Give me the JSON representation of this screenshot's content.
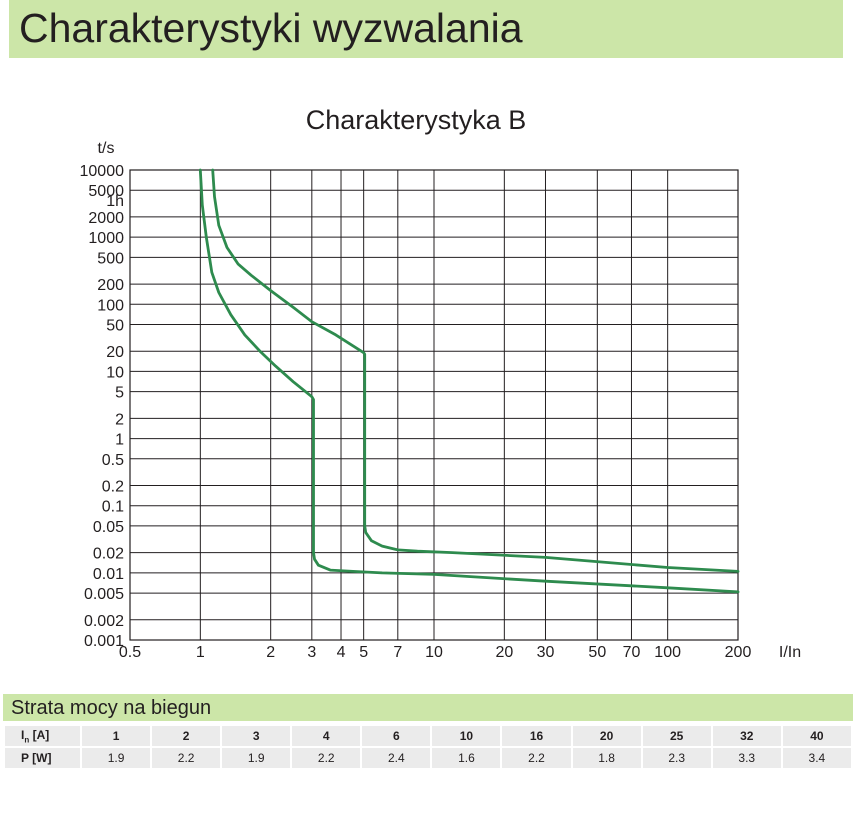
{
  "header": {
    "title": "Charakterystyki wyzwalania"
  },
  "chart_data": {
    "type": "line",
    "title": "Charakterystyka B",
    "ylabel": "t/s",
    "xlabel": "I/In",
    "x_scale": "log",
    "y_scale": "log",
    "xlim": [
      0.5,
      200
    ],
    "ylim": [
      0.001,
      10000
    ],
    "grid": true,
    "x_grid": [
      1,
      2,
      3,
      4,
      5,
      7,
      10,
      20,
      30,
      50,
      70,
      100,
      200
    ],
    "y_grid": [
      0.001,
      0.002,
      0.005,
      0.01,
      0.02,
      0.05,
      0.1,
      0.2,
      0.5,
      1,
      2,
      5,
      10,
      20,
      50,
      100,
      200,
      500,
      1000,
      2000,
      5000,
      10000
    ],
    "x_ticks": [
      {
        "value": 0.5,
        "label": "0.5"
      },
      {
        "value": 1,
        "label": "1"
      },
      {
        "value": 2,
        "label": "2"
      },
      {
        "value": 3,
        "label": "3"
      },
      {
        "value": 4,
        "label": "4"
      },
      {
        "value": 5,
        "label": "5"
      },
      {
        "value": 7,
        "label": "7"
      },
      {
        "value": 10,
        "label": "10"
      },
      {
        "value": 20,
        "label": "20"
      },
      {
        "value": 30,
        "label": "30"
      },
      {
        "value": 50,
        "label": "50"
      },
      {
        "value": 70,
        "label": "70"
      },
      {
        "value": 100,
        "label": "100"
      },
      {
        "value": 200,
        "label": "200"
      }
    ],
    "y_ticks": [
      {
        "value": 10000,
        "label": "10000"
      },
      {
        "value": 5000,
        "label": "5000"
      },
      {
        "value": 3600,
        "label": "1h"
      },
      {
        "value": 2000,
        "label": "2000"
      },
      {
        "value": 1000,
        "label": "1000"
      },
      {
        "value": 500,
        "label": "500"
      },
      {
        "value": 200,
        "label": "200"
      },
      {
        "value": 100,
        "label": "100"
      },
      {
        "value": 50,
        "label": "50"
      },
      {
        "value": 20,
        "label": "20"
      },
      {
        "value": 10,
        "label": "10"
      },
      {
        "value": 5,
        "label": "5"
      },
      {
        "value": 2,
        "label": "2"
      },
      {
        "value": 1,
        "label": "1"
      },
      {
        "value": 0.5,
        "label": "0.5"
      },
      {
        "value": 0.2,
        "label": "0.2"
      },
      {
        "value": 0.1,
        "label": "0.1"
      },
      {
        "value": 0.05,
        "label": "0.05"
      },
      {
        "value": 0.02,
        "label": "0.02"
      },
      {
        "value": 0.01,
        "label": "0.01"
      },
      {
        "value": 0.005,
        "label": "0.005"
      },
      {
        "value": 0.002,
        "label": "0.002"
      },
      {
        "value": 0.001,
        "label": "0.001"
      }
    ],
    "line_color": "#2e8b4e",
    "series": [
      {
        "x": [
          1.0,
          1.02,
          1.06,
          1.12,
          1.2,
          1.35,
          1.55,
          1.8,
          2.1,
          2.5,
          3.0,
          3.05,
          3.05,
          3.08,
          3.2,
          3.6,
          4.5,
          6,
          10,
          30,
          100,
          200
        ],
        "y": [
          10000,
          3000,
          1000,
          300,
          150,
          70,
          35,
          20,
          12,
          7,
          4.2,
          3.8,
          0.02,
          0.016,
          0.013,
          0.011,
          0.0105,
          0.01,
          0.0095,
          0.0075,
          0.006,
          0.0052
        ]
      },
      {
        "x": [
          1.13,
          1.15,
          1.2,
          1.3,
          1.45,
          1.65,
          2.0,
          2.5,
          3.0,
          3.8,
          5.0,
          5.05,
          5.05,
          5.1,
          5.4,
          6.0,
          7.0,
          8.5,
          12,
          30,
          100,
          200
        ],
        "y": [
          10000,
          4000,
          1500,
          700,
          400,
          270,
          160,
          90,
          55,
          35,
          19,
          18,
          0.05,
          0.04,
          0.03,
          0.025,
          0.022,
          0.021,
          0.02,
          0.017,
          0.012,
          0.0105
        ]
      }
    ]
  },
  "loss_table": {
    "title": "Strata mocy na biegun",
    "row_head_in_main": "I",
    "row_head_in_sub": "n",
    "row_head_in_unit": " [A]",
    "row_head_p": "P [W]",
    "in_values": [
      "1",
      "2",
      "3",
      "4",
      "6",
      "10",
      "16",
      "20",
      "25",
      "32",
      "40"
    ],
    "p_values": [
      "1.9",
      "2.2",
      "1.9",
      "2.2",
      "2.4",
      "1.6",
      "2.2",
      "1.8",
      "2.3",
      "3.3",
      "3.4"
    ]
  }
}
